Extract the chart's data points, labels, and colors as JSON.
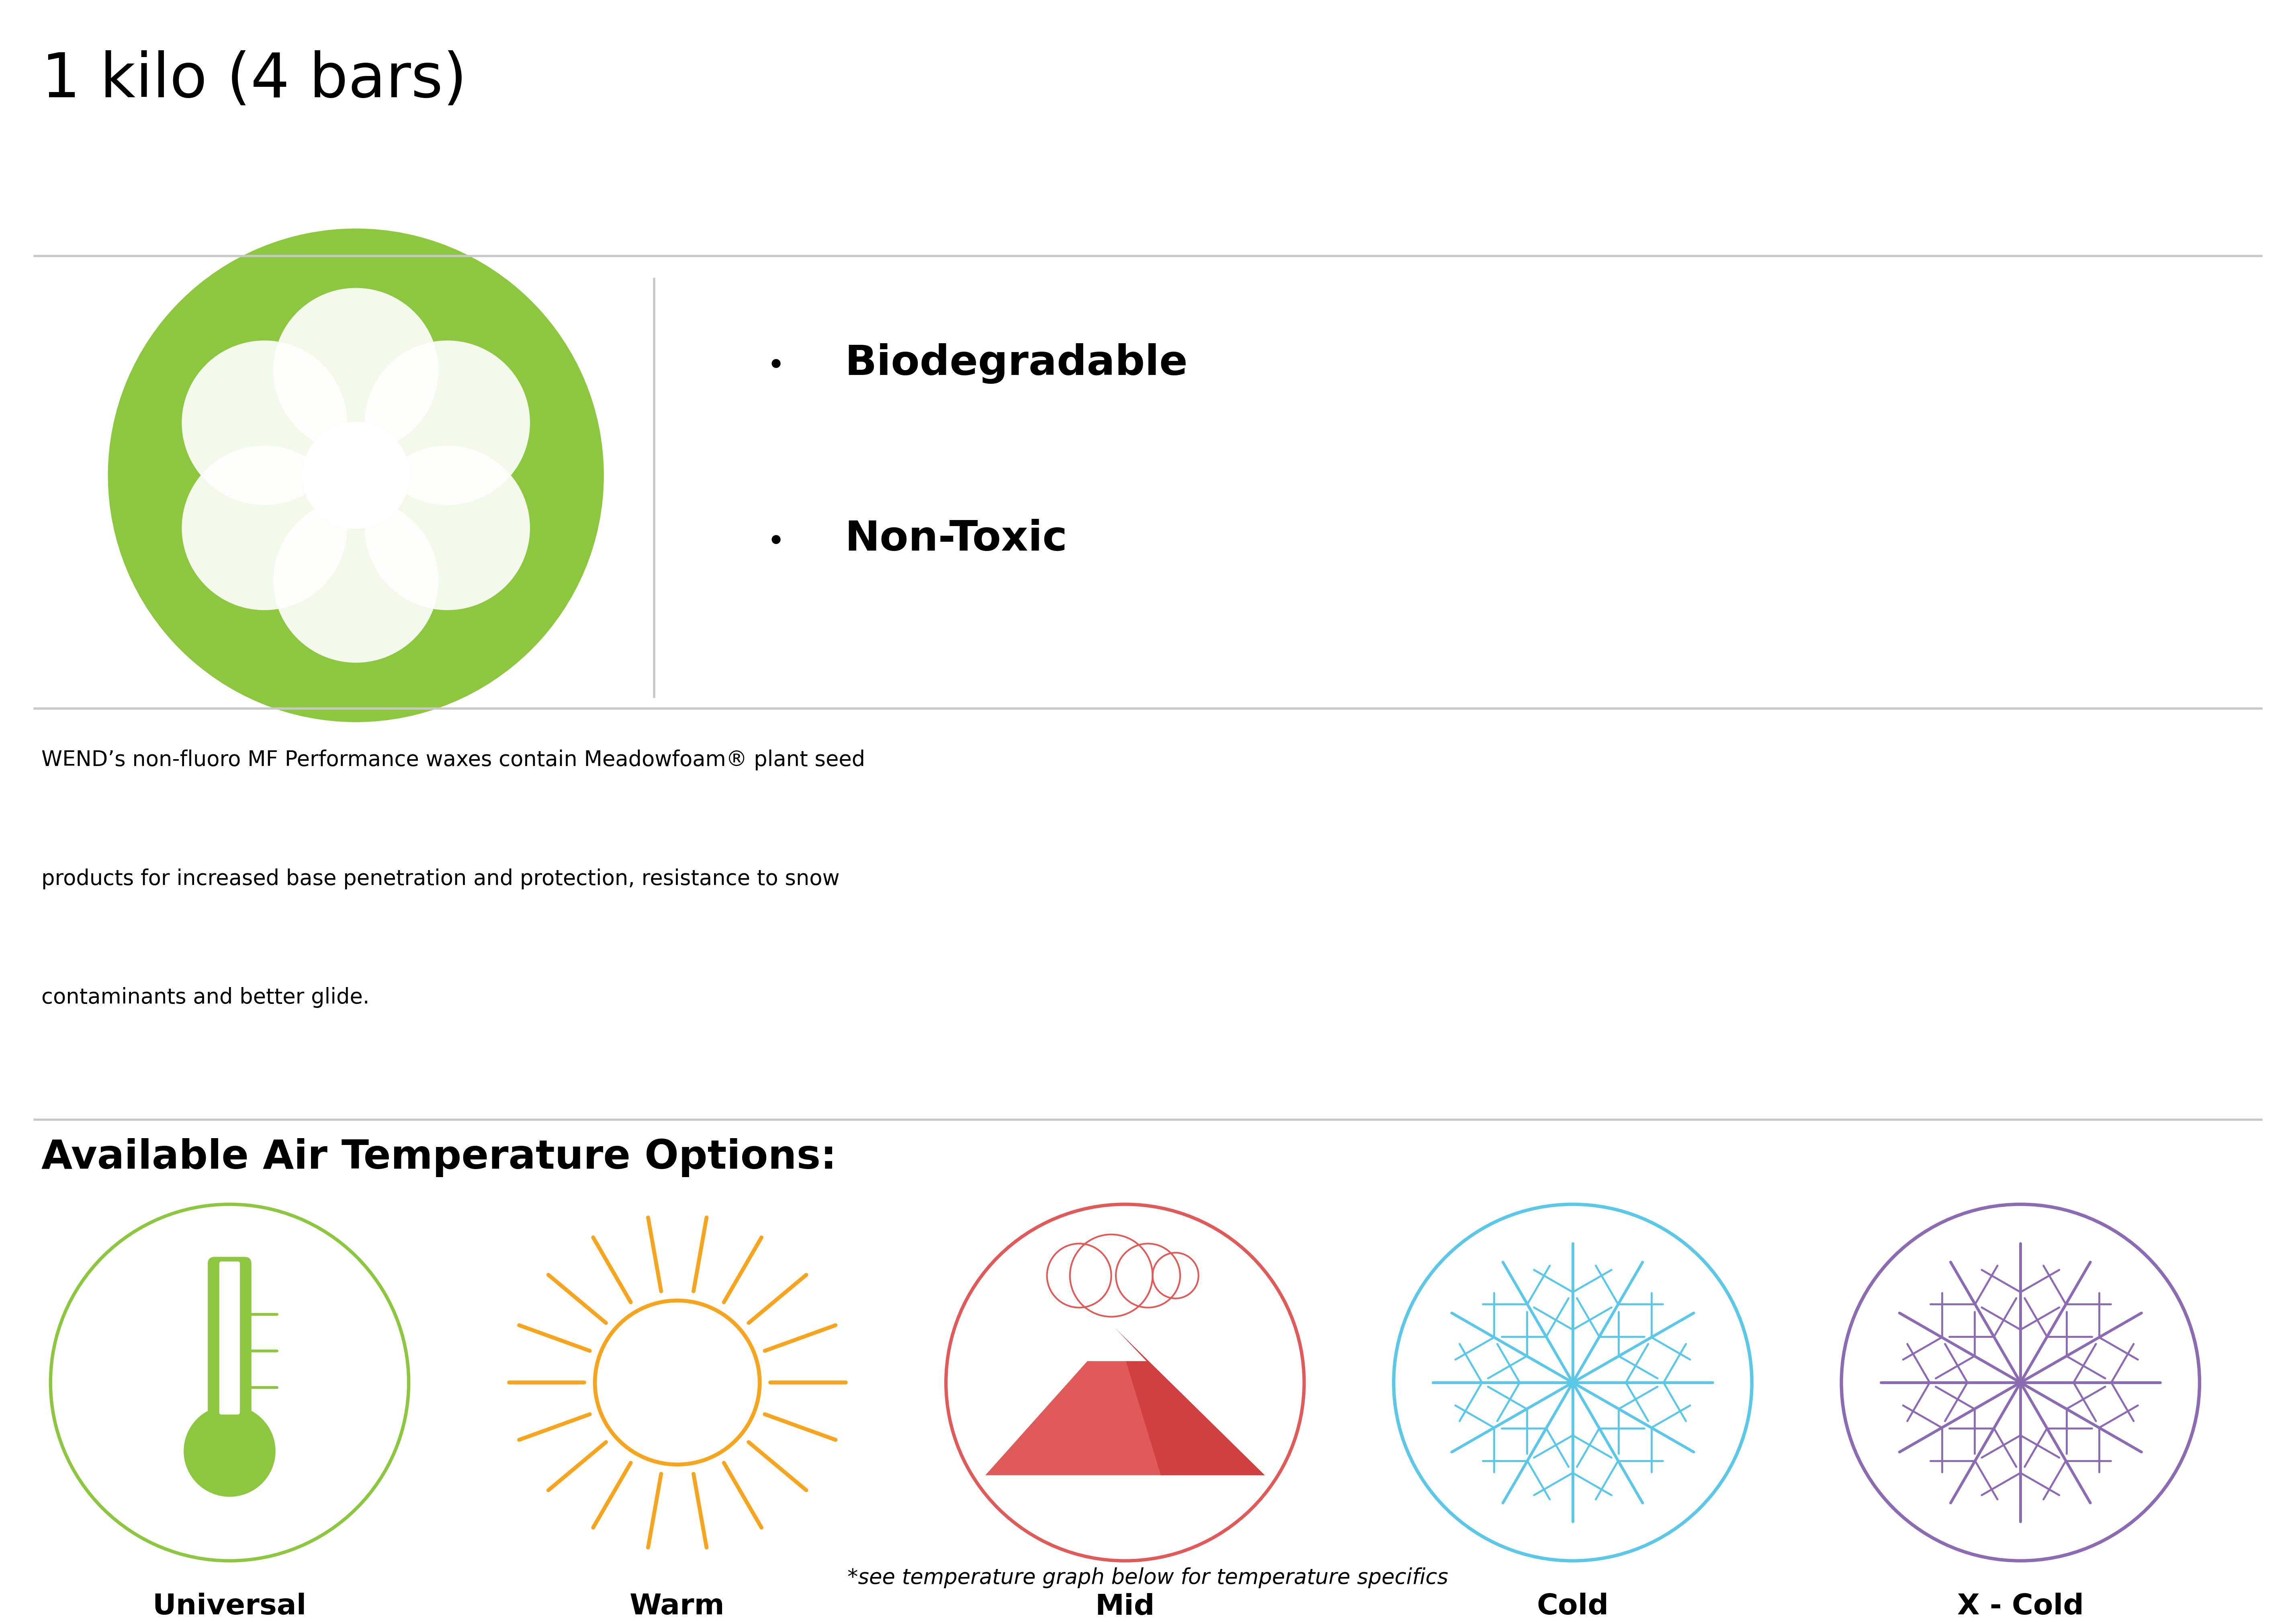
{
  "title": "1 kilo (4 bars)",
  "title_fontsize": 110,
  "bg_color": "#ffffff",
  "divider_color": "#c8c8c8",
  "text_color": "#000000",
  "bullet_items": [
    "Biodegradable",
    "Non-Toxic"
  ],
  "bullet_fontsize": 75,
  "description_lines": [
    "WEND’s non-fluoro MF Performance waxes contain Meadowfoam® plant seed",
    "products for increased base penetration and protection, resistance to snow",
    "contaminants and better glide."
  ],
  "description_fontsize": 38,
  "section_title": "Available Air Temperature Options:",
  "section_title_fontsize": 72,
  "icons": [
    {
      "label": "Universal",
      "color": "#8dc63f",
      "type": "thermometer"
    },
    {
      "label": "Warm",
      "color": "#f7a51e",
      "type": "sun"
    },
    {
      "label": "Mid",
      "color": "#e05a5a",
      "type": "mountain"
    },
    {
      "label": "Cold",
      "color": "#5bc8e8",
      "type": "snowflake"
    },
    {
      "label": "X - Cold",
      "color": "#8b6bb1",
      "type": "snowflake2"
    }
  ],
  "icon_label_fontsize": 52,
  "footnote": "*see temperature graph below for temperature specifics",
  "footnote_fontsize": 38,
  "green_color": "#8dc63f",
  "green_fill": "#a8d47a"
}
